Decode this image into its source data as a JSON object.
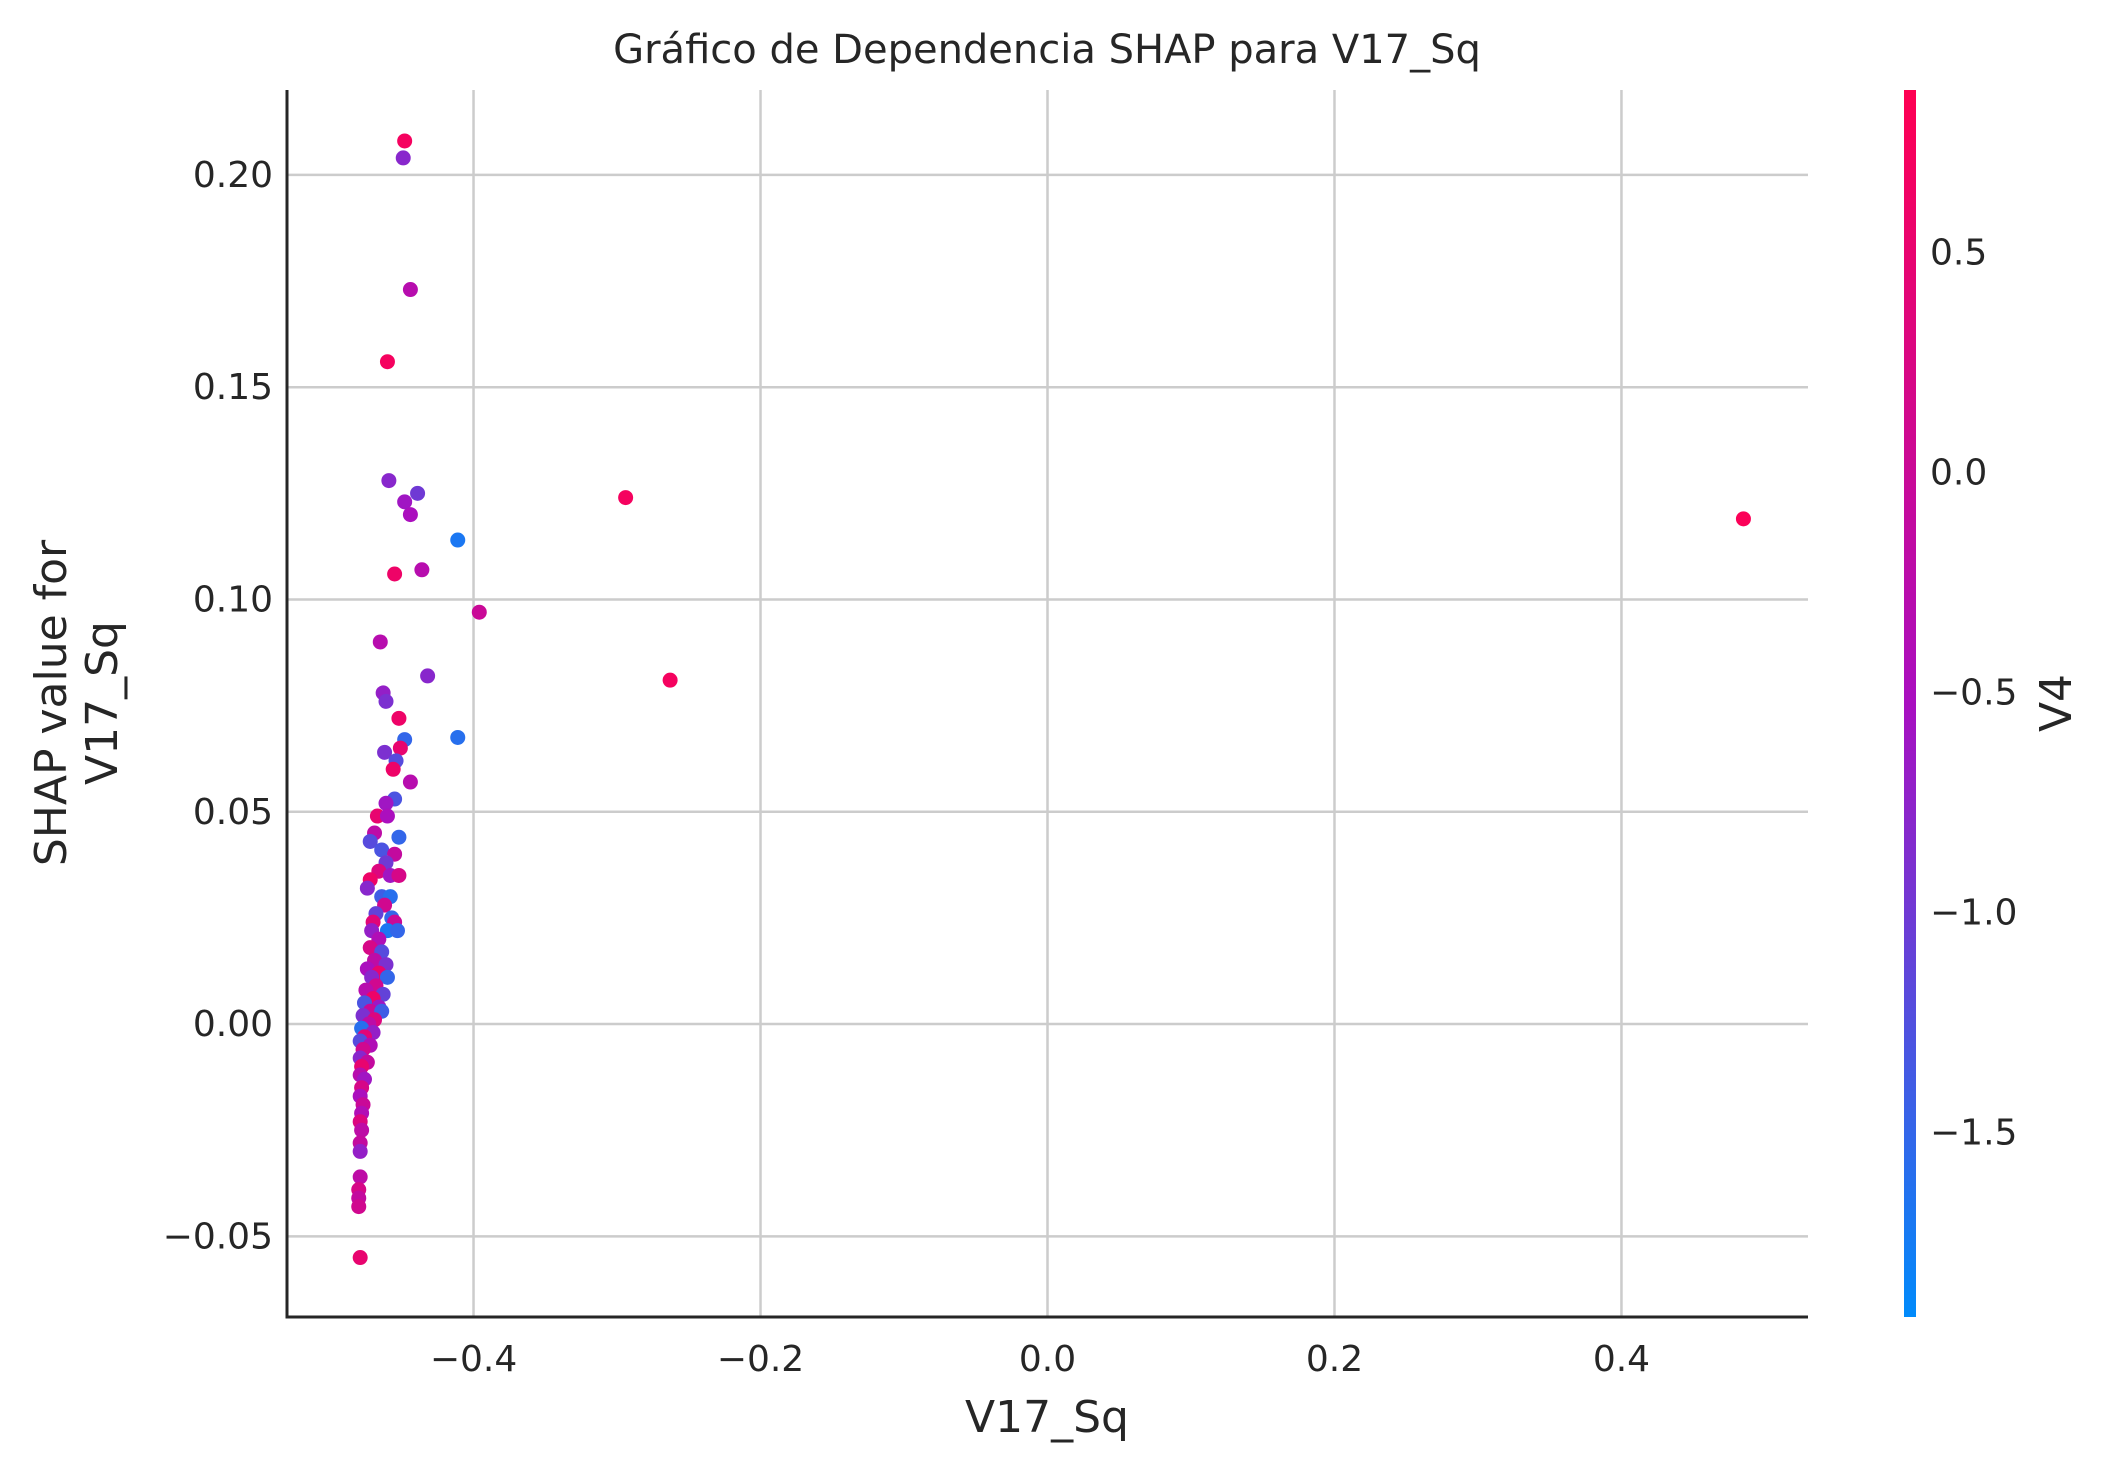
{
  "chart_data": {
    "type": "scatter",
    "title": "Gráfico de Dependencia SHAP para V17_Sq",
    "xlabel": "V17_Sq",
    "ylabel_lines": [
      "SHAP value for",
      "V17_Sq"
    ],
    "xlim": [
      -0.53,
      0.53
    ],
    "ylim": [
      -0.069,
      0.22
    ],
    "xticks": [
      -0.4,
      -0.2,
      0.0,
      0.2,
      0.4
    ],
    "xtick_labels": [
      "−0.4",
      "−0.2",
      "0.0",
      "0.2",
      "0.4"
    ],
    "yticks": [
      -0.05,
      0.0,
      0.05,
      0.1,
      0.15,
      0.2
    ],
    "ytick_labels": [
      "−0.05",
      "0.00",
      "0.05",
      "0.10",
      "0.15",
      "0.20"
    ],
    "grid": true,
    "colorbar": {
      "label": "V4",
      "range": [
        -1.92,
        0.87
      ],
      "ticks": [
        -1.5,
        -1.0,
        -0.5,
        0.0,
        0.5
      ],
      "tick_labels": [
        "−1.5",
        "−1.0",
        "−0.5",
        "0.0",
        "0.5"
      ],
      "color_low": "#008bfb",
      "color_mid": "#a90fc0",
      "color_high": "#ff0052"
    },
    "points": [
      {
        "x": -0.448,
        "y": 0.208,
        "c": 0.7
      },
      {
        "x": -0.449,
        "y": 0.204,
        "c": -0.8
      },
      {
        "x": -0.444,
        "y": 0.173,
        "c": -0.3
      },
      {
        "x": -0.46,
        "y": 0.156,
        "c": 0.7
      },
      {
        "x": -0.459,
        "y": 0.128,
        "c": -0.8
      },
      {
        "x": -0.439,
        "y": 0.125,
        "c": -1.0
      },
      {
        "x": -0.448,
        "y": 0.123,
        "c": -0.6
      },
      {
        "x": -0.444,
        "y": 0.12,
        "c": -0.5
      },
      {
        "x": -0.411,
        "y": 0.114,
        "c": -1.7
      },
      {
        "x": -0.455,
        "y": 0.106,
        "c": 0.6
      },
      {
        "x": -0.436,
        "y": 0.107,
        "c": -0.3
      },
      {
        "x": -0.396,
        "y": 0.097,
        "c": 0.0
      },
      {
        "x": -0.465,
        "y": 0.09,
        "c": -0.3
      },
      {
        "x": -0.432,
        "y": 0.082,
        "c": -0.8
      },
      {
        "x": -0.463,
        "y": 0.078,
        "c": -0.7
      },
      {
        "x": -0.461,
        "y": 0.076,
        "c": -0.9
      },
      {
        "x": -0.452,
        "y": 0.072,
        "c": 0.6
      },
      {
        "x": -0.411,
        "y": 0.0675,
        "c": -1.6
      },
      {
        "x": -0.448,
        "y": 0.067,
        "c": -1.5
      },
      {
        "x": -0.451,
        "y": 0.065,
        "c": 0.5
      },
      {
        "x": -0.462,
        "y": 0.064,
        "c": -0.9
      },
      {
        "x": -0.454,
        "y": 0.062,
        "c": -1.2
      },
      {
        "x": -0.456,
        "y": 0.06,
        "c": 0.6
      },
      {
        "x": -0.444,
        "y": 0.057,
        "c": -0.3
      },
      {
        "x": -0.455,
        "y": 0.053,
        "c": -1.3
      },
      {
        "x": -0.461,
        "y": 0.052,
        "c": -0.6
      },
      {
        "x": -0.467,
        "y": 0.049,
        "c": 0.5
      },
      {
        "x": -0.46,
        "y": 0.049,
        "c": -0.5
      },
      {
        "x": -0.469,
        "y": 0.045,
        "c": -0.2
      },
      {
        "x": -0.452,
        "y": 0.044,
        "c": -1.5
      },
      {
        "x": -0.472,
        "y": 0.043,
        "c": -1.2
      },
      {
        "x": -0.464,
        "y": 0.041,
        "c": -1.3
      },
      {
        "x": -0.455,
        "y": 0.04,
        "c": -0.1
      },
      {
        "x": -0.461,
        "y": 0.038,
        "c": -1.0
      },
      {
        "x": -0.466,
        "y": 0.036,
        "c": 0.3
      },
      {
        "x": -0.458,
        "y": 0.035,
        "c": -0.6
      },
      {
        "x": -0.452,
        "y": 0.035,
        "c": 0.2
      },
      {
        "x": -0.472,
        "y": 0.034,
        "c": 0.6
      },
      {
        "x": -0.474,
        "y": 0.032,
        "c": -0.8
      },
      {
        "x": -0.464,
        "y": 0.03,
        "c": -1.4
      },
      {
        "x": -0.458,
        "y": 0.03,
        "c": -1.6
      },
      {
        "x": -0.462,
        "y": 0.028,
        "c": 0.1
      },
      {
        "x": -0.468,
        "y": 0.026,
        "c": -1.1
      },
      {
        "x": -0.457,
        "y": 0.025,
        "c": -1.5
      },
      {
        "x": -0.47,
        "y": 0.024,
        "c": 0.4
      },
      {
        "x": -0.455,
        "y": 0.024,
        "c": 0.0
      },
      {
        "x": -0.471,
        "y": 0.022,
        "c": -0.7
      },
      {
        "x": -0.46,
        "y": 0.022,
        "c": -1.7
      },
      {
        "x": -0.453,
        "y": 0.022,
        "c": -1.5
      },
      {
        "x": -0.466,
        "y": 0.02,
        "c": -0.4
      },
      {
        "x": -0.472,
        "y": 0.018,
        "c": 0.2
      },
      {
        "x": -0.464,
        "y": 0.017,
        "c": -1.2
      },
      {
        "x": -0.469,
        "y": 0.015,
        "c": -0.2
      },
      {
        "x": -0.461,
        "y": 0.014,
        "c": -0.9
      },
      {
        "x": -0.474,
        "y": 0.013,
        "c": -0.5
      },
      {
        "x": -0.466,
        "y": 0.012,
        "c": 0.5
      },
      {
        "x": -0.471,
        "y": 0.011,
        "c": -0.8
      },
      {
        "x": -0.46,
        "y": 0.011,
        "c": -1.5
      },
      {
        "x": -0.468,
        "y": 0.009,
        "c": 0.1
      },
      {
        "x": -0.475,
        "y": 0.008,
        "c": -0.3
      },
      {
        "x": -0.463,
        "y": 0.007,
        "c": -1.1
      },
      {
        "x": -0.47,
        "y": 0.006,
        "c": 0.6
      },
      {
        "x": -0.476,
        "y": 0.005,
        "c": -1.3
      },
      {
        "x": -0.466,
        "y": 0.004,
        "c": -0.6
      },
      {
        "x": -0.472,
        "y": 0.003,
        "c": 0.0
      },
      {
        "x": -0.464,
        "y": 0.003,
        "c": -1.4
      },
      {
        "x": -0.477,
        "y": 0.002,
        "c": -0.9
      },
      {
        "x": -0.469,
        "y": 0.001,
        "c": 0.3
      },
      {
        "x": -0.473,
        "y": 0.0,
        "c": -0.2
      },
      {
        "x": -0.478,
        "y": -0.001,
        "c": -1.6
      },
      {
        "x": -0.47,
        "y": -0.002,
        "c": -0.7
      },
      {
        "x": -0.476,
        "y": -0.003,
        "c": 0.4
      },
      {
        "x": -0.479,
        "y": -0.004,
        "c": -1.2
      },
      {
        "x": -0.472,
        "y": -0.005,
        "c": -0.4
      },
      {
        "x": -0.477,
        "y": -0.006,
        "c": 0.1
      },
      {
        "x": -0.479,
        "y": -0.008,
        "c": -0.8
      },
      {
        "x": -0.474,
        "y": -0.009,
        "c": -0.1
      },
      {
        "x": -0.478,
        "y": -0.01,
        "c": 0.5
      },
      {
        "x": -0.479,
        "y": -0.012,
        "c": -0.3
      },
      {
        "x": -0.476,
        "y": -0.013,
        "c": -0.6
      },
      {
        "x": -0.478,
        "y": -0.015,
        "c": 0.2
      },
      {
        "x": -0.479,
        "y": -0.017,
        "c": -0.5
      },
      {
        "x": -0.477,
        "y": -0.019,
        "c": 0.0
      },
      {
        "x": -0.478,
        "y": -0.021,
        "c": -0.4
      },
      {
        "x": -0.479,
        "y": -0.023,
        "c": 0.3
      },
      {
        "x": -0.478,
        "y": -0.025,
        "c": -0.2
      },
      {
        "x": -0.479,
        "y": -0.028,
        "c": -0.1
      },
      {
        "x": -0.479,
        "y": -0.03,
        "c": -0.7
      },
      {
        "x": -0.479,
        "y": -0.036,
        "c": -0.2
      },
      {
        "x": -0.48,
        "y": -0.039,
        "c": 0.2
      },
      {
        "x": -0.48,
        "y": -0.041,
        "c": -0.1
      },
      {
        "x": -0.48,
        "y": -0.043,
        "c": 0.1
      },
      {
        "x": -0.479,
        "y": -0.055,
        "c": 0.5
      },
      {
        "x": -0.294,
        "y": 0.124,
        "c": 0.7
      },
      {
        "x": -0.263,
        "y": 0.081,
        "c": 0.7
      },
      {
        "x": 0.485,
        "y": 0.119,
        "c": 0.8
      }
    ]
  }
}
